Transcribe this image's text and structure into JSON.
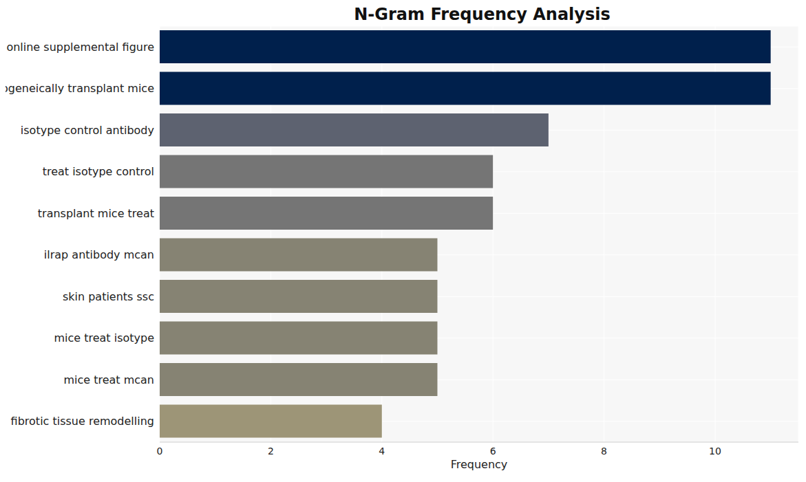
{
  "chart_data": {
    "type": "bar",
    "title": "N-Gram Frequency Analysis",
    "xlabel": "Frequency",
    "orientation": "horizontal",
    "categories": [
      "online supplemental figure",
      "allogeneically transplant mice",
      "isotype control antibody",
      "treat isotype control",
      "transplant mice treat",
      "ilrap antibody mcan",
      "skin patients ssc",
      "mice treat isotype",
      "mice treat mcan",
      "fibrotic tissue remodelling"
    ],
    "values": [
      11,
      11,
      7,
      6,
      6,
      5,
      5,
      5,
      5,
      4
    ],
    "colors": [
      "#00204c",
      "#00204c",
      "#5d6270",
      "#757575",
      "#757575",
      "#868373",
      "#868373",
      "#868373",
      "#868373",
      "#9d9577"
    ],
    "xlim": [
      0,
      11.5
    ],
    "xticks": [
      0,
      2,
      4,
      6,
      8,
      10
    ],
    "grid": true
  }
}
